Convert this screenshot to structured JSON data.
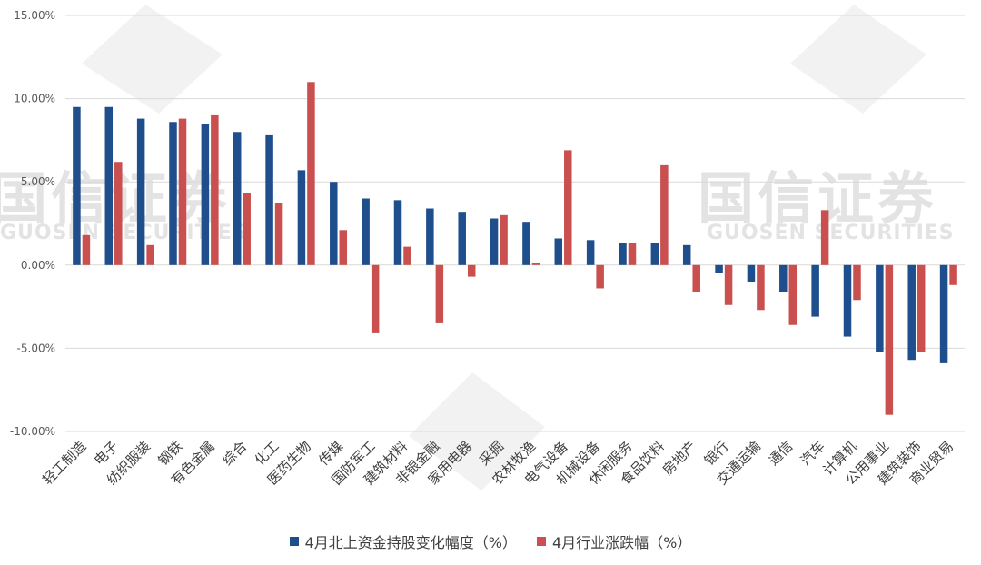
{
  "chart_data": {
    "type": "bar",
    "categories": [
      "轻工制造",
      "电子",
      "纺织服装",
      "钢铁",
      "有色金属",
      "综合",
      "化工",
      "医药生物",
      "传媒",
      "国防军工",
      "建筑材料",
      "非银金融",
      "家用电器",
      "采掘",
      "农林牧渔",
      "电气设备",
      "机械设备",
      "休闲服务",
      "食品饮料",
      "房地产",
      "银行",
      "交通运输",
      "通信",
      "汽车",
      "计算机",
      "公用事业",
      "建筑装饰",
      "商业贸易"
    ],
    "series": [
      {
        "name": "4月北上资金持股变化幅度（%）",
        "color": "#1f4e8c",
        "values": [
          9.5,
          9.5,
          8.8,
          8.6,
          8.5,
          8.0,
          7.8,
          5.7,
          5.0,
          4.0,
          3.9,
          3.4,
          3.2,
          2.8,
          2.6,
          1.6,
          1.5,
          1.3,
          1.3,
          1.2,
          -0.5,
          -1.0,
          -1.6,
          -3.1,
          -4.3,
          -5.2,
          -5.7,
          -5.9
        ]
      },
      {
        "name": "4月行业涨跌幅（%）",
        "color": "#c9504f",
        "values": [
          1.8,
          6.2,
          1.2,
          8.8,
          9.0,
          4.3,
          3.7,
          11.0,
          2.1,
          -4.1,
          1.1,
          -3.5,
          -0.7,
          3.0,
          0.1,
          6.9,
          -1.4,
          1.3,
          6.0,
          -1.6,
          -2.4,
          -2.7,
          -3.6,
          3.3,
          -2.1,
          -9.0,
          -5.2,
          -1.2
        ]
      }
    ],
    "yticks": [
      "15.00%",
      "10.00%",
      "5.00%",
      "0.00%",
      "-5.00%",
      "-10.00%"
    ],
    "ylim": [
      -10,
      15
    ],
    "legend_position": "bottom",
    "grid": true
  },
  "watermark": {
    "text": "国信证券",
    "subtext": "GUOSEN SECURITIES"
  }
}
